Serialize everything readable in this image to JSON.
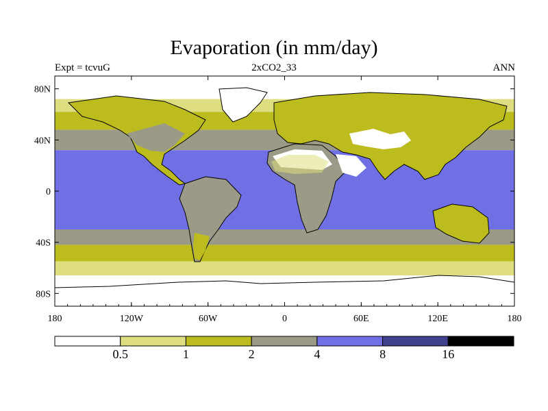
{
  "header": {
    "title": "Evaporation (in mm/day)",
    "left_label": "Expt = tcvuG",
    "center_label": "2xCO2_33",
    "right_label": "ANN"
  },
  "chart_data": {
    "type": "heatmap",
    "title": "Evaporation (in mm/day)",
    "subtitle_left": "Expt = tcvuG",
    "subtitle_center": "2xCO2_33",
    "subtitle_right": "ANN",
    "projection": "cylindrical equidistant",
    "x_ticks": [
      {
        "value": -180,
        "label": "180"
      },
      {
        "value": -120,
        "label": "120W"
      },
      {
        "value": -60,
        "label": "60W"
      },
      {
        "value": 0,
        "label": "0"
      },
      {
        "value": 60,
        "label": "60E"
      },
      {
        "value": 120,
        "label": "120E"
      },
      {
        "value": 180,
        "label": "180"
      }
    ],
    "y_ticks": [
      {
        "value": 80,
        "label": "80N"
      },
      {
        "value": 40,
        "label": "40N"
      },
      {
        "value": 0,
        "label": "0"
      },
      {
        "value": -40,
        "label": "40S"
      },
      {
        "value": -80,
        "label": "80S"
      }
    ],
    "xlim": [
      -180,
      180
    ],
    "ylim": [
      -90,
      90
    ],
    "colorbar": {
      "levels": [
        "0.5",
        "1",
        "2",
        "4",
        "8",
        "16"
      ],
      "colors": [
        "#ffffff",
        "#dede80",
        "#bcbc1e",
        "#9a9a86",
        "#7070e4",
        "#40408e",
        "#000000"
      ]
    },
    "zonal_bands": [
      {
        "lat_from": 90,
        "lat_to": 72,
        "color": "#ffffff"
      },
      {
        "lat_from": 72,
        "lat_to": 62,
        "color": "#dede80"
      },
      {
        "lat_from": 62,
        "lat_to": 48,
        "color": "#bcbc1e"
      },
      {
        "lat_from": 48,
        "lat_to": 32,
        "color": "#9a9a86"
      },
      {
        "lat_from": 32,
        "lat_to": -30,
        "color": "#7070e4"
      },
      {
        "lat_from": -30,
        "lat_to": -42,
        "color": "#9a9a86"
      },
      {
        "lat_from": -42,
        "lat_to": -55,
        "color": "#bcbc1e"
      },
      {
        "lat_from": -55,
        "lat_to": -66,
        "color": "#dede80"
      },
      {
        "lat_from": -66,
        "lat_to": -90,
        "color": "#ffffff"
      }
    ]
  }
}
